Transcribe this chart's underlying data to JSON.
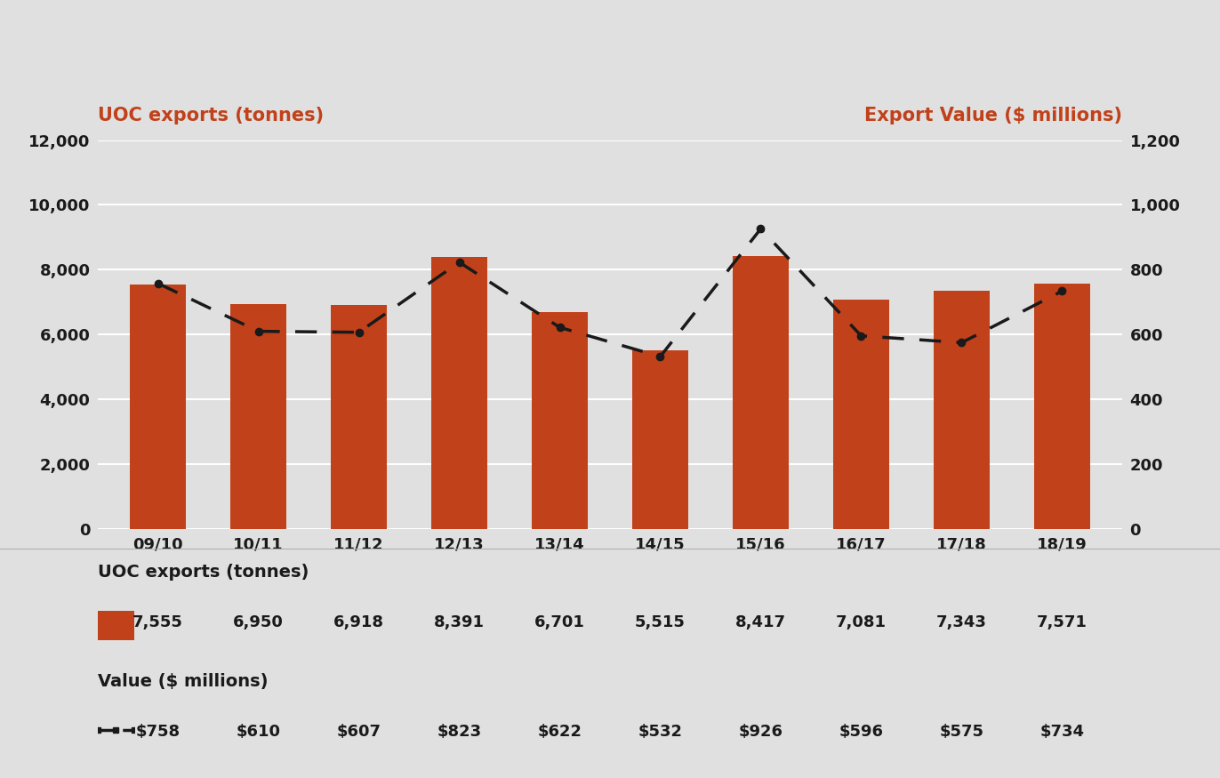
{
  "categories": [
    "09/10",
    "10/11",
    "11/12",
    "12/13",
    "13/14",
    "14/15",
    "15/16",
    "16/17",
    "17/18",
    "18/19"
  ],
  "tonnes": [
    7555,
    6950,
    6918,
    8391,
    6701,
    5515,
    8417,
    7081,
    7343,
    7571
  ],
  "value_millions": [
    758,
    610,
    607,
    823,
    622,
    532,
    926,
    596,
    575,
    734
  ],
  "bar_color": "#C1411A",
  "line_color": "#1a1a1a",
  "background_color": "#E0E0E0",
  "left_axis_label": "UOC exports (tonnes)",
  "right_axis_label": "Export Value ($ millions)",
  "axis_label_color": "#C1411A",
  "ylim_left": [
    0,
    12000
  ],
  "ylim_right": [
    0,
    1200
  ],
  "yticks_left": [
    0,
    2000,
    4000,
    6000,
    8000,
    10000,
    12000
  ],
  "yticks_right": [
    0,
    200,
    400,
    600,
    800,
    1000,
    1200
  ],
  "legend_tonnes_label": "UOC exports (tonnes)",
  "legend_value_label": "Value ($ millions)",
  "tonnes_display": [
    "7,555",
    "6,950",
    "6,918",
    "8,391",
    "6,701",
    "5,515",
    "8,417",
    "7,081",
    "7,343",
    "7,571"
  ],
  "value_display": [
    "$758",
    "$610",
    "$607",
    "$823",
    "$622",
    "$532",
    "$926",
    "$596",
    "$575",
    "$734"
  ],
  "tick_fontsize": 13,
  "label_fontsize": 15,
  "legend_title_fontsize": 14,
  "legend_val_fontsize": 13
}
